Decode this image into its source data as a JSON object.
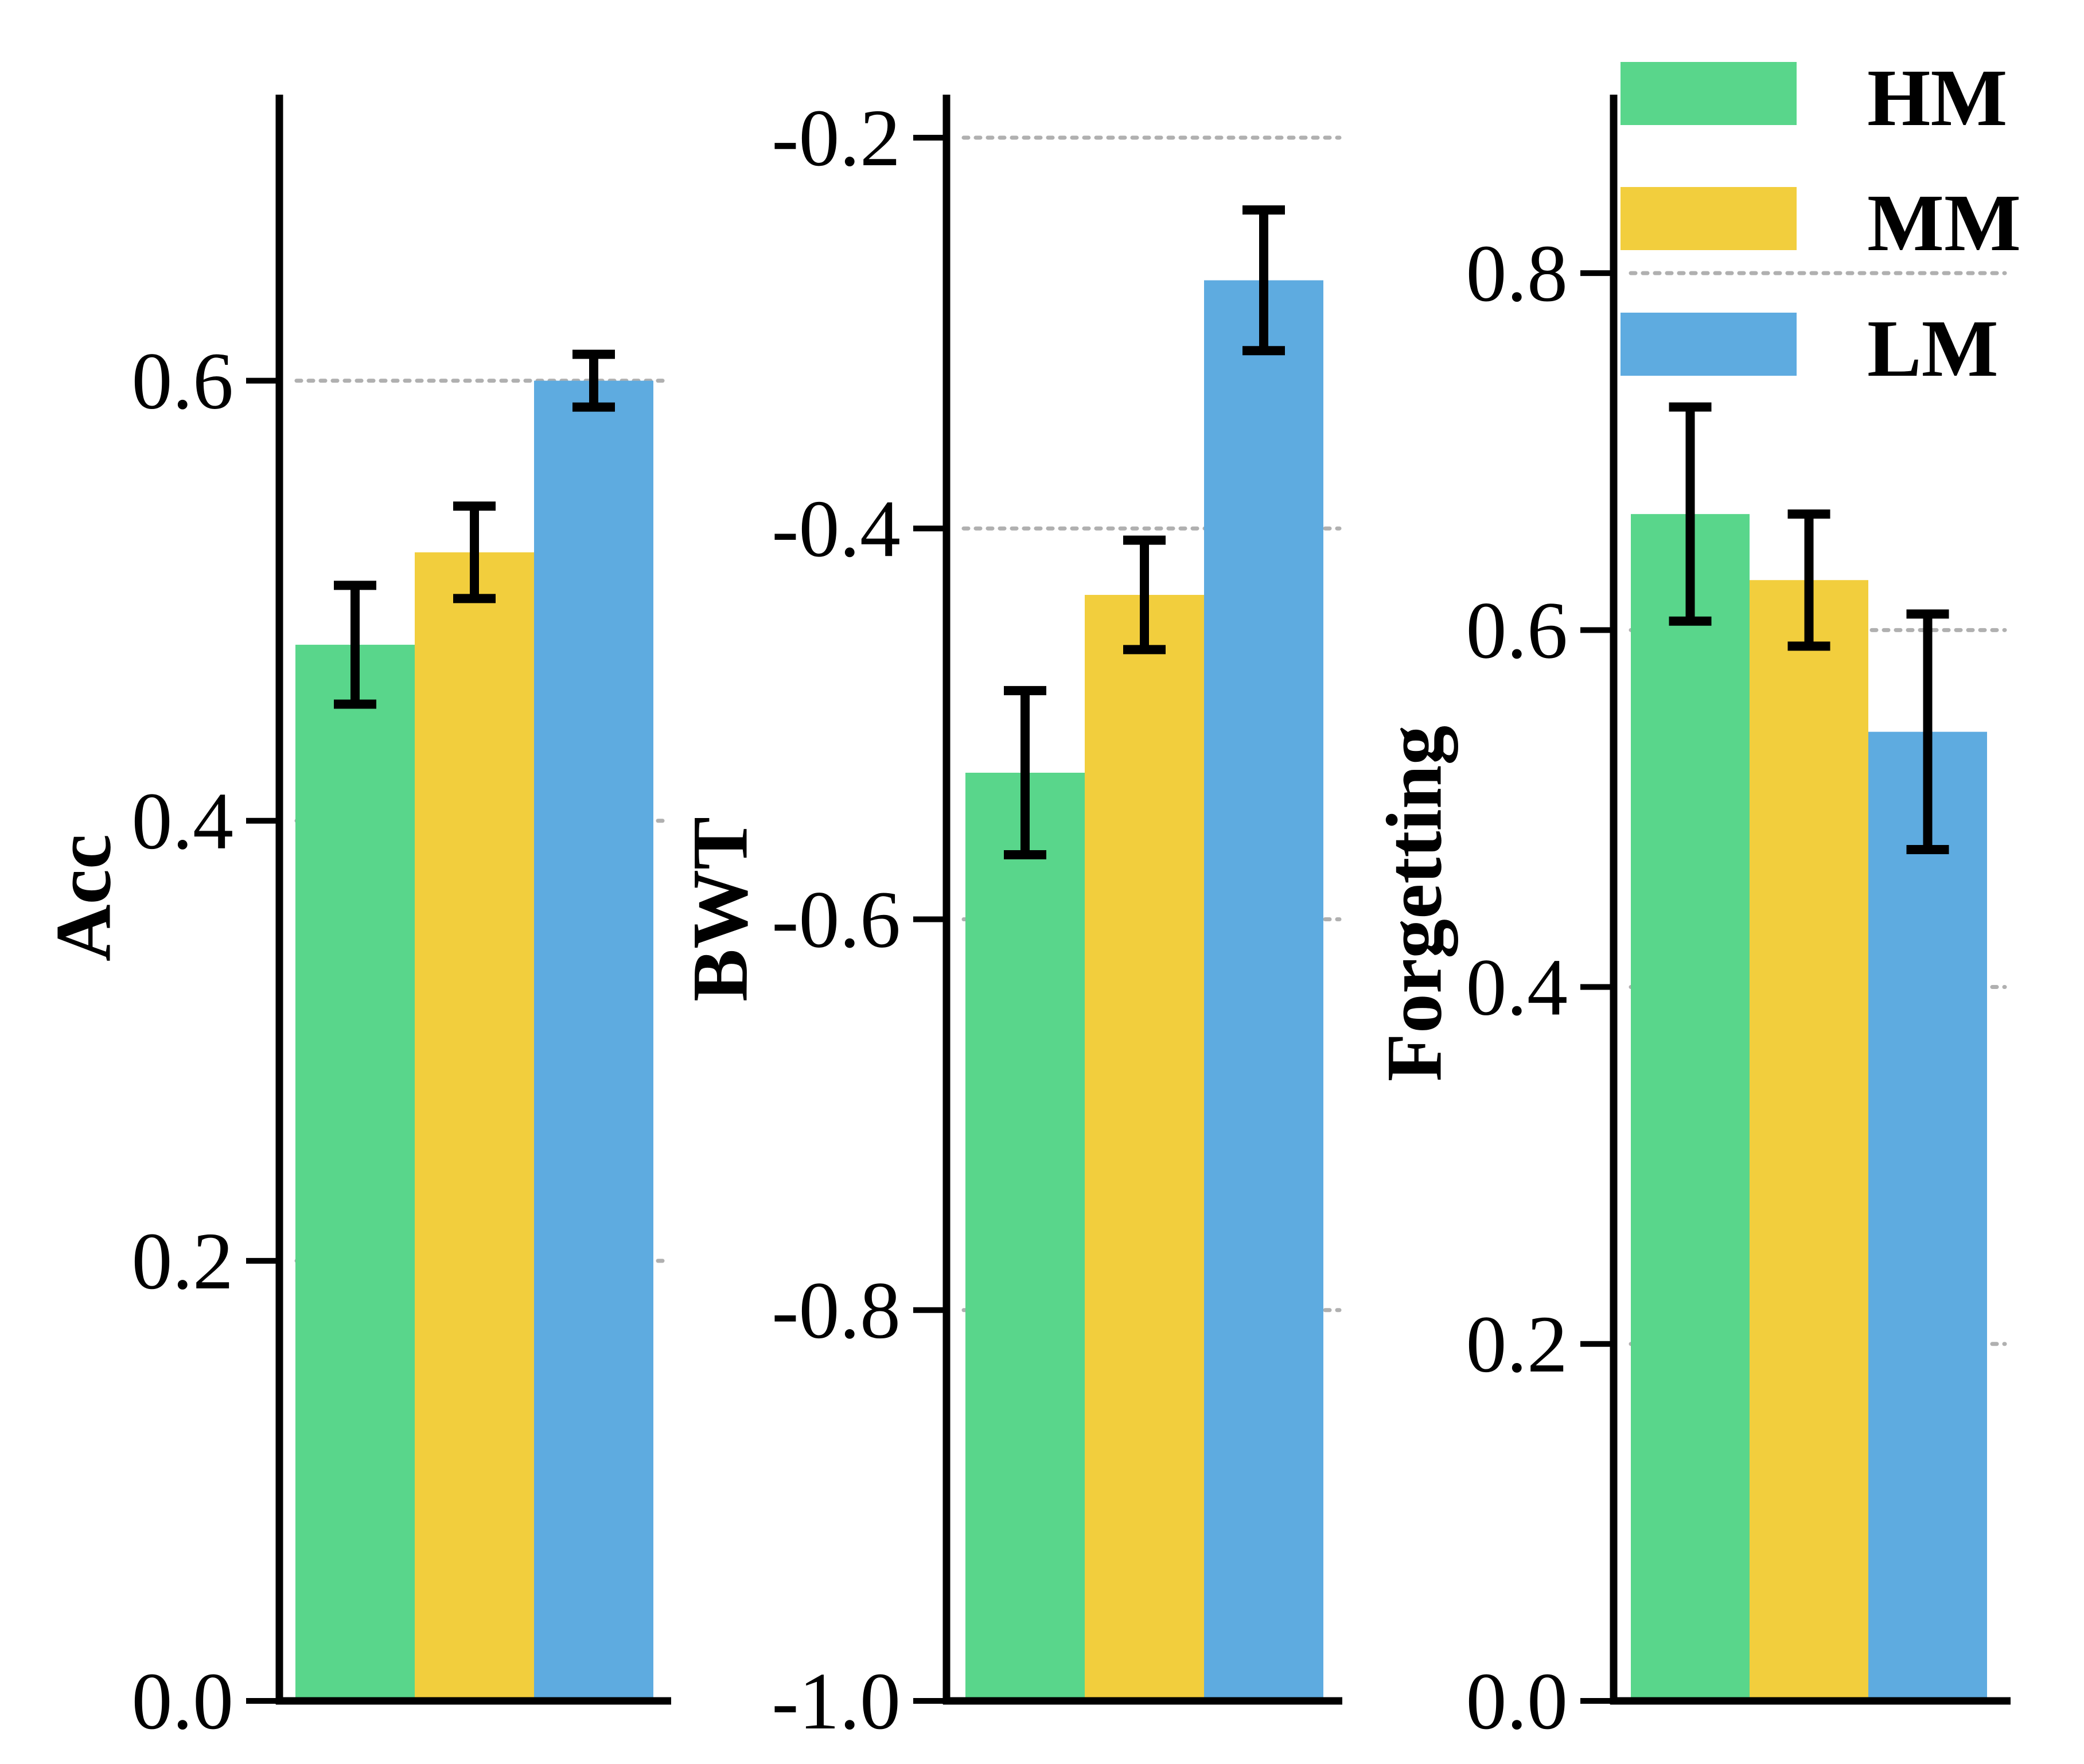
{
  "chart_data": [
    {
      "type": "bar",
      "ylabel": "Acc",
      "ylim": [
        0.0,
        0.73
      ],
      "ticks": [
        0.0,
        0.2,
        0.4,
        0.6
      ],
      "tick_labels": [
        "0.0",
        "0.2",
        "0.4",
        "0.6"
      ],
      "grid": true,
      "series": [
        {
          "name": "HM",
          "value": 0.48,
          "err": 0.027
        },
        {
          "name": "MM",
          "value": 0.522,
          "err": 0.021
        },
        {
          "name": "LM",
          "value": 0.6,
          "err": 0.012
        }
      ]
    },
    {
      "type": "bar",
      "ylabel": "BWT",
      "ylim": [
        -1.0,
        -0.178
      ],
      "ticks": [
        -1.0,
        -0.8,
        -0.6,
        -0.4,
        -0.2
      ],
      "tick_labels": [
        "-1.0",
        "-0.8",
        "-0.6",
        "-0.4",
        "-0.2"
      ],
      "grid": true,
      "series": [
        {
          "name": "HM",
          "value": -0.525,
          "err": 0.042
        },
        {
          "name": "MM",
          "value": -0.434,
          "err": 0.028
        },
        {
          "name": "LM",
          "value": -0.273,
          "err": 0.036
        }
      ]
    },
    {
      "type": "bar",
      "ylabel": "Forgetting",
      "ylim": [
        0.0,
        0.9
      ],
      "ticks": [
        0.0,
        0.2,
        0.4,
        0.6,
        0.8
      ],
      "tick_labels": [
        "0.0",
        "0.2",
        "0.4",
        "0.6",
        "0.8"
      ],
      "grid": true,
      "series": [
        {
          "name": "HM",
          "value": 0.665,
          "err": 0.06
        },
        {
          "name": "MM",
          "value": 0.628,
          "err": 0.037
        },
        {
          "name": "LM",
          "value": 0.543,
          "err": 0.066
        }
      ]
    }
  ],
  "legend": {
    "placement": "top-right",
    "items": [
      {
        "label": "HM",
        "color": "#59d68b"
      },
      {
        "label": "MM",
        "color": "#f2ce3d"
      },
      {
        "label": "LM",
        "color": "#5eabe0"
      }
    ]
  }
}
